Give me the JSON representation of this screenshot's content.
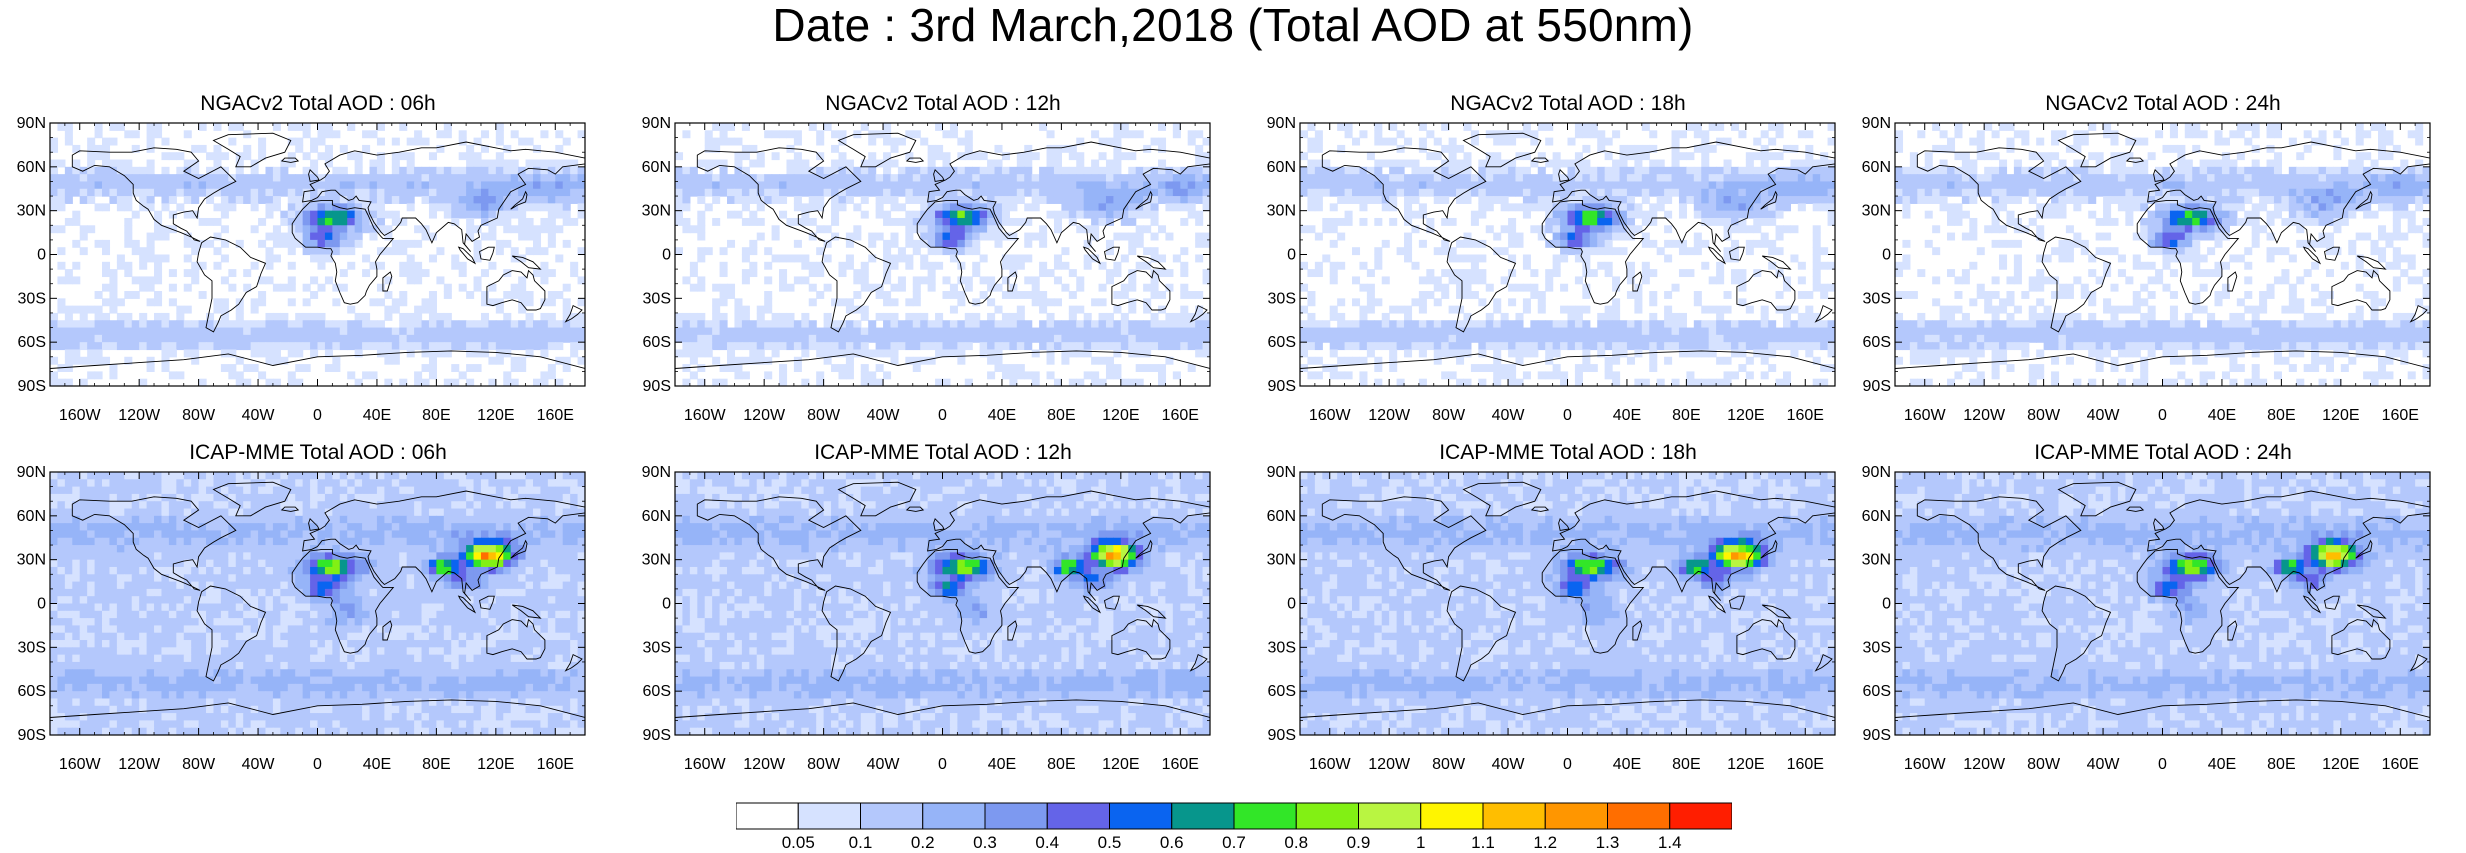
{
  "title": "Date : 3rd March,2018 (Total AOD at 550nm)",
  "lat_ticks": [
    "90N",
    "60N",
    "30N",
    "0",
    "30S",
    "60S",
    "90S"
  ],
  "lon_ticks": [
    "160W",
    "120W",
    "80W",
    "40W",
    "0",
    "40E",
    "80E",
    "120E",
    "160E"
  ],
  "panels": [
    {
      "title": "NGACv2 Total AOD : 06h",
      "model": "NGACv2",
      "hour": "06h"
    },
    {
      "title": "NGACv2 Total AOD : 12h",
      "model": "NGACv2",
      "hour": "12h"
    },
    {
      "title": "NGACv2 Total AOD : 18h",
      "model": "NGACv2",
      "hour": "18h"
    },
    {
      "title": "NGACv2 Total AOD : 24h",
      "model": "NGACv2",
      "hour": "24h"
    },
    {
      "title": "ICAP-MME Total AOD : 06h",
      "model": "ICAP-MME",
      "hour": "06h"
    },
    {
      "title": "ICAP-MME Total AOD : 12h",
      "model": "ICAP-MME",
      "hour": "12h"
    },
    {
      "title": "ICAP-MME Total AOD : 18h",
      "model": "ICAP-MME",
      "hour": "18h"
    },
    {
      "title": "ICAP-MME Total AOD : 24h",
      "model": "ICAP-MME",
      "hour": "24h"
    }
  ],
  "colorbar": {
    "labels": [
      "0.05",
      "0.1",
      "0.2",
      "0.3",
      "0.4",
      "0.5",
      "0.6",
      "0.7",
      "0.8",
      "0.9",
      "1",
      "1.1",
      "1.2",
      "1.3",
      "1.4"
    ],
    "colors": [
      "#ffffff",
      "#d6e2ff",
      "#b4c8fc",
      "#96b4f8",
      "#7d99f0",
      "#6464e8",
      "#0a64f0",
      "#07968c",
      "#32e628",
      "#82f014",
      "#b9f541",
      "#fff500",
      "#ffbe00",
      "#ff9600",
      "#ff6e00",
      "#ff1e00"
    ]
  }
}
